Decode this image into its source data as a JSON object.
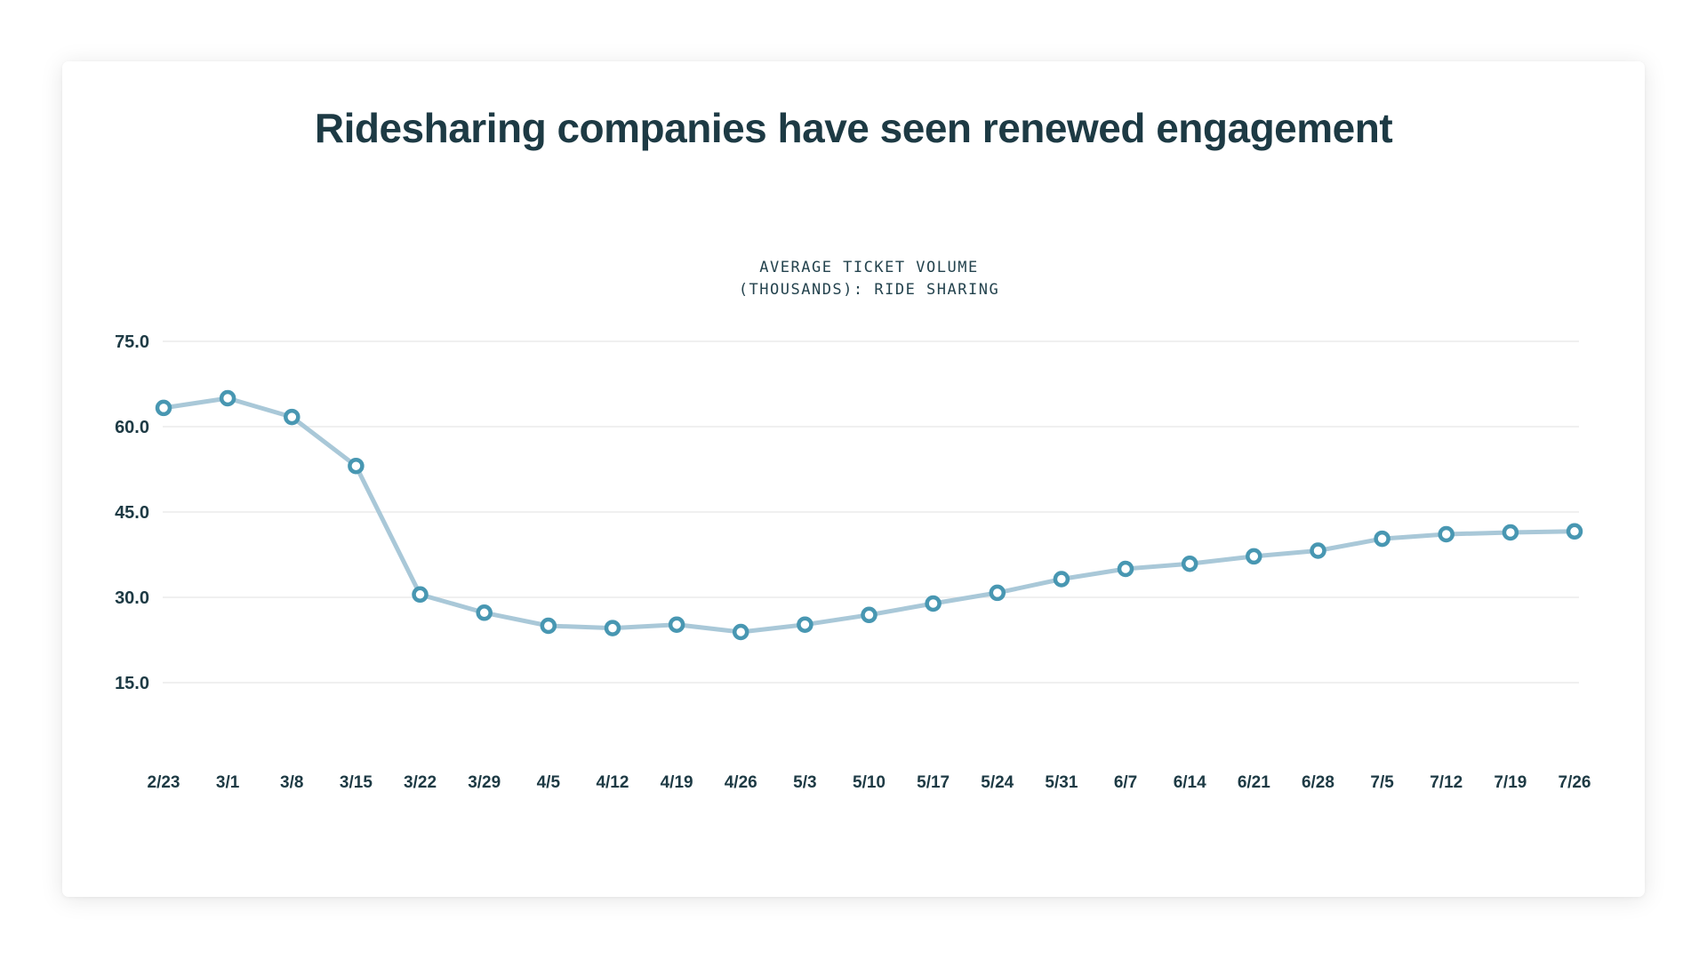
{
  "chart": {
    "title": "Ridesharing companies have seen renewed engagement",
    "subtitle_line1": "AVERAGE TICKET VOLUME",
    "subtitle_line2": "(THOUSANDS): RIDE SHARING"
  },
  "chart_data": {
    "type": "line",
    "title": "Ridesharing companies have seen renewed engagement",
    "subtitle": "AVERAGE TICKET VOLUME (THOUSANDS): RIDE SHARING",
    "categories": [
      "2/23",
      "3/1",
      "3/8",
      "3/15",
      "3/22",
      "3/29",
      "4/5",
      "4/12",
      "4/19",
      "4/26",
      "5/3",
      "5/10",
      "5/17",
      "5/24",
      "5/31",
      "6/7",
      "6/14",
      "6/21",
      "6/28",
      "7/5",
      "7/12",
      "7/19",
      "7/26"
    ],
    "series": [
      {
        "name": "Average ticket volume (thousands): ride sharing",
        "values": [
          63.3,
          65.0,
          61.7,
          53.1,
          30.5,
          27.3,
          25.0,
          24.6,
          25.2,
          23.9,
          25.2,
          26.9,
          28.9,
          30.8,
          33.2,
          35.0,
          35.9,
          37.2,
          38.2,
          40.3,
          41.1,
          41.4,
          41.6
        ]
      }
    ],
    "xlabel": "",
    "ylabel": "",
    "y_ticks": [
      75.0,
      60.0,
      45.0,
      30.0,
      15.0
    ],
    "y_tick_labels": [
      "75.0",
      "60.0",
      "45.0",
      "30.0",
      "15.0"
    ],
    "ylim": [
      15.0,
      75.0
    ],
    "grid": "horizontal",
    "legend": "none",
    "colors": {
      "line": "#a9c8d8",
      "marker_stroke": "#4897b2",
      "marker_fill": "#ffffff",
      "gridline": "#ebebeb",
      "text": "#1d3a44",
      "background": "#ffffff"
    }
  }
}
